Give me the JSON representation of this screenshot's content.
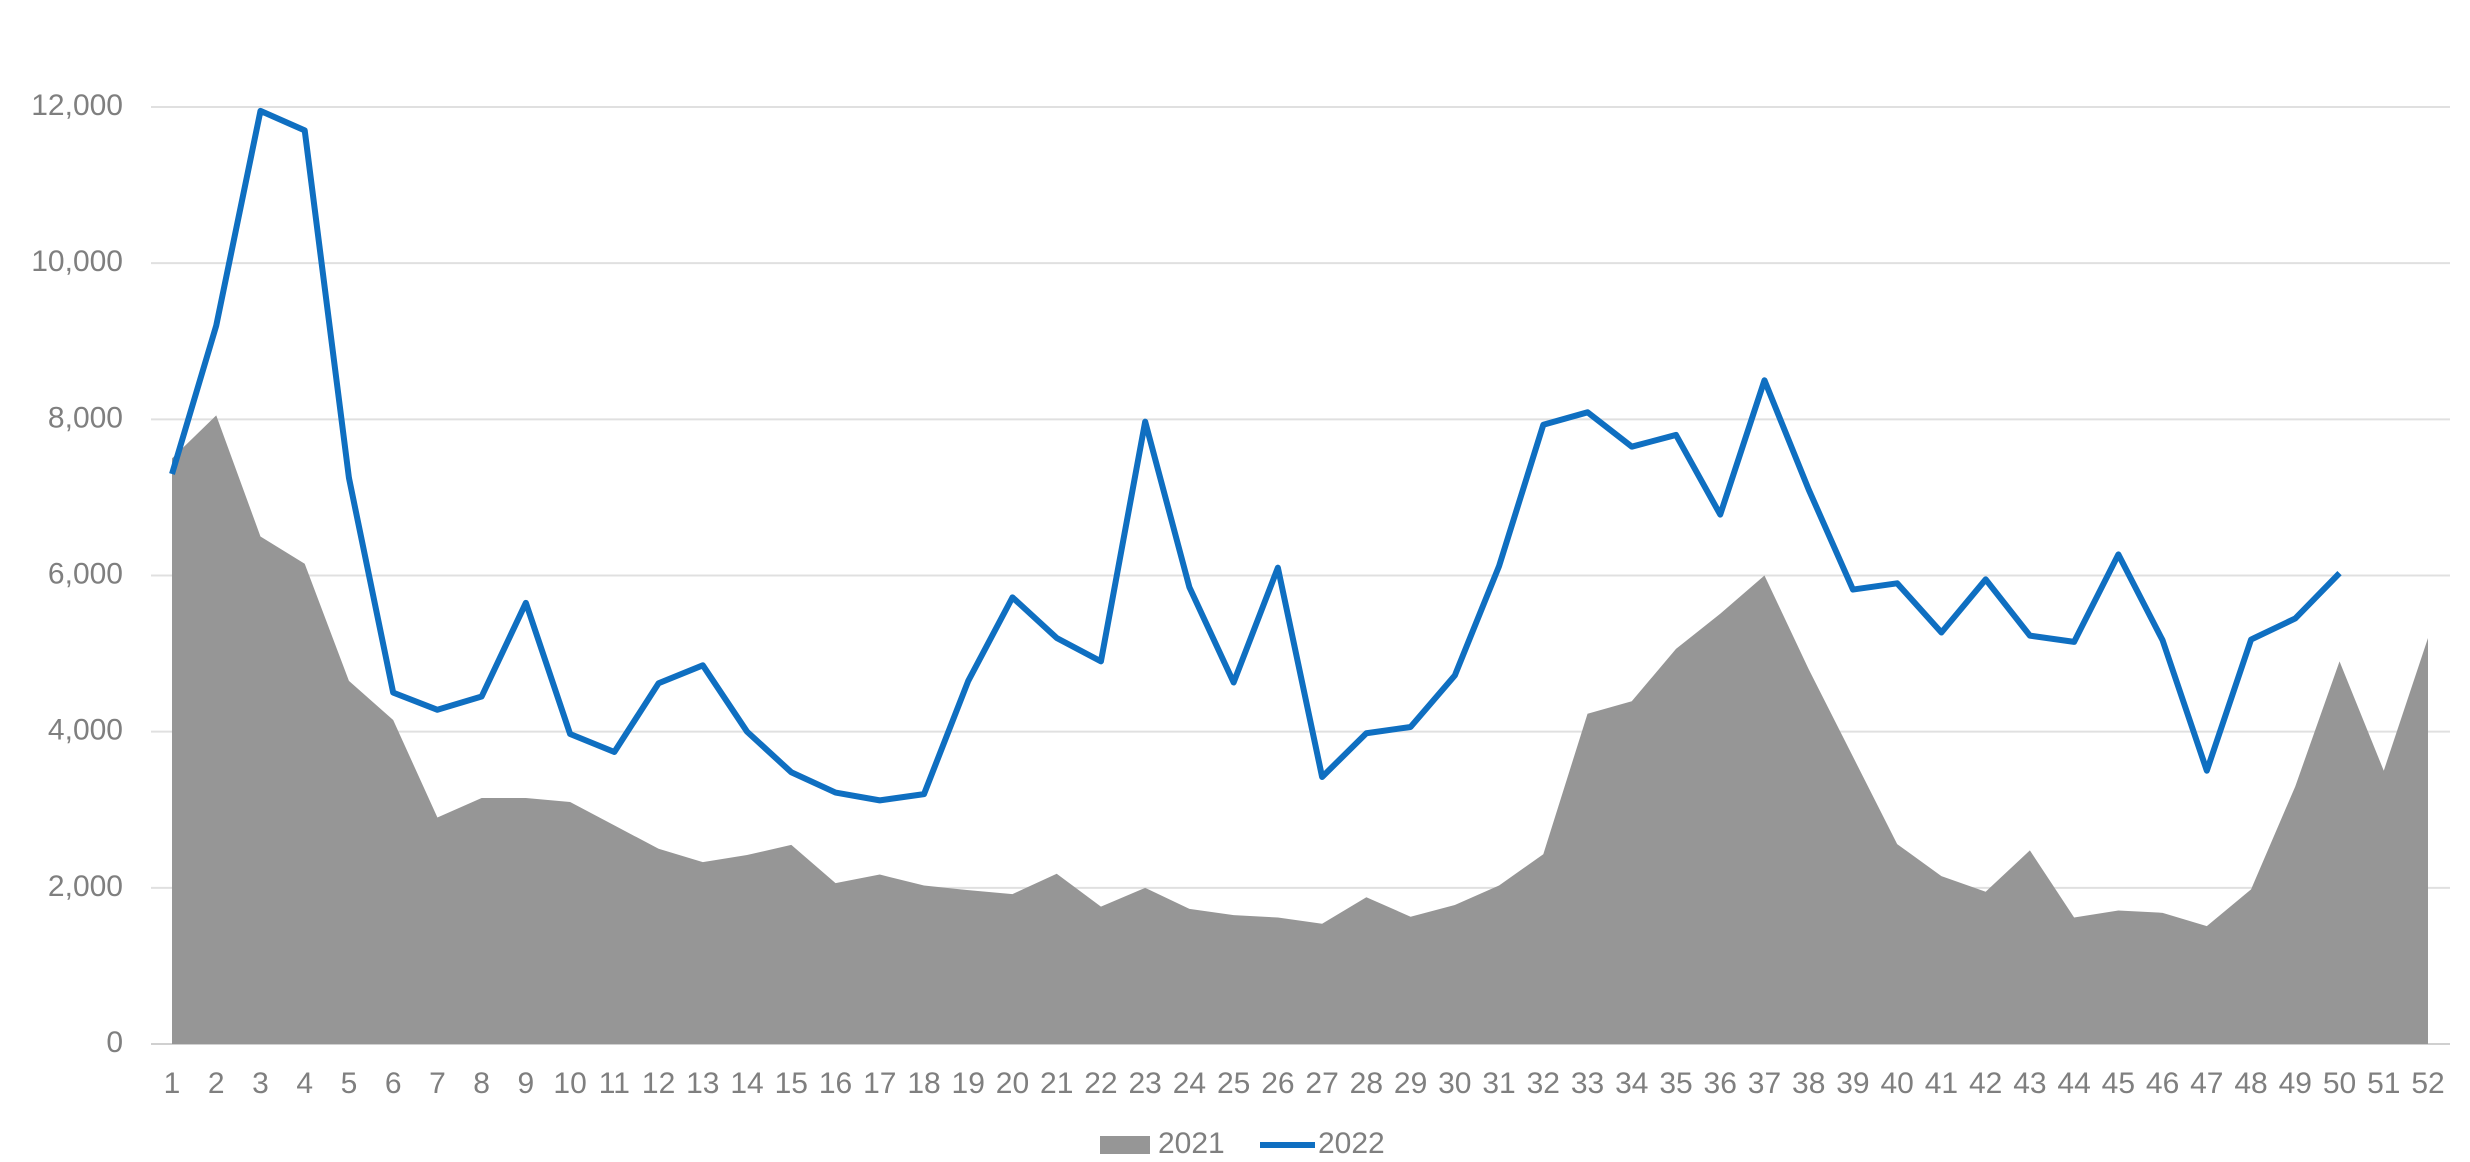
{
  "chart_data": {
    "type": "line",
    "categories": [
      "1",
      "2",
      "3",
      "4",
      "5",
      "6",
      "7",
      "8",
      "9",
      "10",
      "11",
      "12",
      "13",
      "14",
      "15",
      "16",
      "17",
      "18",
      "19",
      "20",
      "21",
      "22",
      "23",
      "24",
      "25",
      "26",
      "27",
      "28",
      "29",
      "30",
      "31",
      "32",
      "33",
      "34",
      "35",
      "36",
      "37",
      "38",
      "39",
      "40",
      "41",
      "42",
      "43",
      "44",
      "45",
      "46",
      "47",
      "48",
      "49",
      "50",
      "51",
      "52"
    ],
    "series": [
      {
        "name": "2021",
        "kind": "area",
        "color": "#969696",
        "values": [
          7500,
          8050,
          6500,
          6150,
          4650,
          4150,
          2900,
          3150,
          3150,
          3100,
          2800,
          2500,
          2330,
          2420,
          2550,
          2060,
          2170,
          2030,
          1970,
          1920,
          2180,
          1760,
          2000,
          1730,
          1650,
          1620,
          1540,
          1880,
          1630,
          1780,
          2030,
          2430,
          4230,
          4390,
          5060,
          5510,
          6000,
          4800,
          3680,
          2560,
          2150,
          1950,
          2480,
          1620,
          1710,
          1680,
          1510,
          1980,
          3300,
          4900,
          3500,
          5200
        ]
      },
      {
        "name": "2022",
        "kind": "line",
        "color": "#0f6fc1",
        "values": [
          7300,
          9200,
          11950,
          11700,
          7250,
          4500,
          4280,
          4450,
          5650,
          3970,
          3740,
          4620,
          4850,
          4000,
          3480,
          3220,
          3120,
          3200,
          4650,
          5720,
          5200,
          4900,
          7970,
          5850,
          4630,
          6100,
          3420,
          3980,
          4060,
          4720,
          6120,
          7930,
          8090,
          7650,
          7800,
          6780,
          8500,
          7100,
          5820,
          5900,
          5270,
          5950,
          5230,
          5150,
          6270,
          5170,
          3500,
          5180,
          5450,
          6030,
          null,
          null
        ]
      }
    ],
    "ylim": [
      0,
      12000
    ],
    "yticks": [
      0,
      {
        "value": 2000,
        "label": "2,000"
      },
      {
        "value": 4000,
        "label": "4,000"
      },
      {
        "value": 6000,
        "label": "6,000"
      },
      {
        "value": 8000,
        "label": "8,000"
      },
      {
        "value": 10000,
        "label": "10,000"
      },
      {
        "value": 12000,
        "label": "12,000"
      }
    ],
    "grid": true,
    "legend": "bottom"
  }
}
